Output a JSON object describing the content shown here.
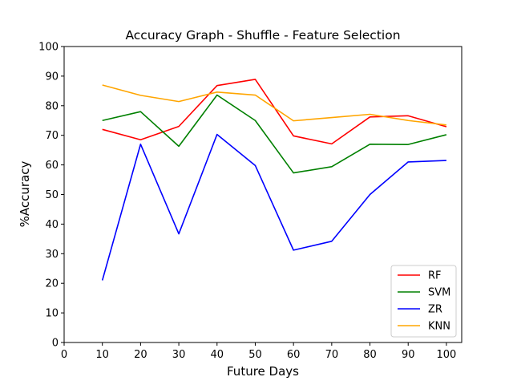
{
  "chart_data": {
    "type": "line",
    "title": "Accuracy Graph - Shuffle - Feature Selection",
    "xlabel": "Future Days",
    "ylabel": "%Accuracy",
    "xlim": [
      0,
      104
    ],
    "ylim": [
      0,
      100
    ],
    "xticks": [
      0,
      10,
      20,
      30,
      40,
      50,
      60,
      70,
      80,
      90,
      100
    ],
    "yticks": [
      0,
      10,
      20,
      30,
      40,
      50,
      60,
      70,
      80,
      90,
      100
    ],
    "grid": false,
    "legend_position": "lower-right",
    "x": [
      10,
      20,
      30,
      40,
      50,
      60,
      70,
      80,
      90,
      100
    ],
    "series": [
      {
        "name": "RF",
        "color": "#ff0000",
        "values": [
          72.0,
          68.5,
          73.0,
          86.8,
          88.9,
          69.8,
          67.1,
          76.2,
          76.6,
          72.9
        ]
      },
      {
        "name": "SVM",
        "color": "#008000",
        "values": [
          75.0,
          78.0,
          66.3,
          83.6,
          75.0,
          57.3,
          59.4,
          67.0,
          66.9,
          70.2
        ]
      },
      {
        "name": "ZR",
        "color": "#0000ff",
        "values": [
          21.0,
          67.0,
          36.7,
          70.3,
          59.8,
          31.2,
          34.2,
          50.0,
          61.0,
          61.5
        ]
      },
      {
        "name": "KNN",
        "color": "#ffa500",
        "values": [
          87.0,
          83.5,
          81.4,
          84.6,
          83.6,
          74.9,
          76.0,
          77.1,
          75.0,
          73.5
        ]
      }
    ]
  }
}
